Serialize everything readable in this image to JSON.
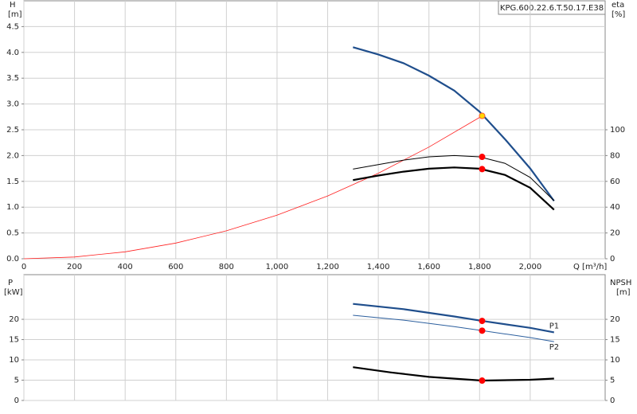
{
  "chart_data": [
    {
      "type": "line",
      "y_label": "H",
      "y_unit": "[m]",
      "y2_label": "eta",
      "y2_unit": "[%]",
      "x_label": "Q [m³/h]",
      "legend": "KPG.600.22.6.T.50.17.E38",
      "xlim": [
        0,
        2296
      ],
      "xticks": [
        0,
        200,
        400,
        600,
        800,
        {
          "value": 1000,
          "label": "1,000"
        },
        {
          "value": 1200,
          "label": "1,200"
        },
        {
          "value": 1400,
          "label": "1,400"
        },
        {
          "value": 1600,
          "label": "1,600"
        },
        {
          "value": 1800,
          "label": "1,800"
        },
        {
          "value": 2000,
          "label": "2,000"
        }
      ],
      "ylim": [
        0,
        5
      ],
      "yticks": [
        {
          "value": 0,
          "label": "0.0"
        },
        0.5,
        {
          "value": 1,
          "label": "1.0"
        },
        1.5,
        {
          "value": 2,
          "label": "2.0"
        },
        2.5,
        {
          "value": 3,
          "label": "3.0"
        },
        3.5,
        {
          "value": 4,
          "label": "4.0"
        },
        4.5
      ],
      "y2lim": [
        0,
        200
      ],
      "y2ticks": [
        0,
        20,
        40,
        60,
        80,
        100
      ],
      "grid": true,
      "series": [
        {
          "color": "#ff2020",
          "width": 0.8,
          "x": [
            0,
            200,
            400,
            600,
            800,
            1000,
            1200,
            1400,
            1600,
            1800,
            1820
          ],
          "values": [
            0,
            0.034,
            0.135,
            0.304,
            0.541,
            0.846,
            1.218,
            1.657,
            2.165,
            2.739,
            2.8
          ]
        },
        {
          "color": "#1f4e8c",
          "width": 2.2,
          "x": [
            1300,
            1400,
            1500,
            1600,
            1700,
            1800,
            1900,
            2000,
            2094
          ],
          "values": [
            4.1,
            3.96,
            3.79,
            3.55,
            3.26,
            2.85,
            2.32,
            1.75,
            1.12
          ]
        },
        {
          "color": "#000000",
          "width": 1,
          "axis": "y2",
          "x": [
            1300,
            1400,
            1500,
            1600,
            1700,
            1800,
            1900,
            2000,
            2094
          ],
          "values": [
            69.5,
            73,
            76.5,
            79,
            80,
            79,
            74,
            63,
            45
          ]
        },
        {
          "color": "#000000",
          "width": 2.2,
          "axis": "y2",
          "x": [
            1300,
            1400,
            1500,
            1600,
            1700,
            1800,
            1900,
            2000,
            2094
          ],
          "values": [
            61,
            64.5,
            67.5,
            69.8,
            70.8,
            69.8,
            65,
            55,
            38
          ]
        }
      ],
      "markers": [
        {
          "color": "#ffd700",
          "x": 1810,
          "y": 2.77
        },
        {
          "color": "#ff0000",
          "axis": "y2",
          "x": 1810,
          "y": 79
        },
        {
          "color": "#ff0000",
          "axis": "y2",
          "x": 1810,
          "y": 69.5
        }
      ]
    },
    {
      "type": "line",
      "y_label": "P",
      "y_unit": "[kW]",
      "y2_label": "NPSH",
      "y2_unit": "[m]",
      "xlim": [
        0,
        2296
      ],
      "ylim": [
        0,
        31
      ],
      "yticks": [
        0,
        5,
        10,
        15,
        20
      ],
      "y2lim": [
        0,
        31
      ],
      "y2ticks": [
        0,
        5,
        10,
        15,
        20
      ],
      "grid": true,
      "series": [
        {
          "name": "P1",
          "color": "#1f4e8c",
          "width": 2.2,
          "x": [
            1300,
            1500,
            1700,
            1810,
            2000,
            2094
          ],
          "values": [
            23.8,
            22.5,
            20.7,
            19.6,
            17.9,
            16.8
          ]
        },
        {
          "name": "P2",
          "color": "#2c5f9e",
          "width": 1,
          "x": [
            1300,
            1500,
            1700,
            1810,
            2000,
            2094
          ],
          "values": [
            21,
            19.8,
            18.2,
            17.2,
            15.5,
            14.5
          ]
        },
        {
          "color": "#000000",
          "width": 2.2,
          "axis": "y2",
          "x": [
            1300,
            1450,
            1600,
            1810,
            2000,
            2094
          ],
          "values": [
            8.2,
            6.9,
            5.8,
            4.9,
            5.1,
            5.4
          ]
        }
      ],
      "markers": [
        {
          "color": "#ff0000",
          "x": 1810,
          "y": 19.6
        },
        {
          "color": "#ff0000",
          "x": 1810,
          "y": 17.2
        },
        {
          "color": "#ff0000",
          "axis": "y2",
          "x": 1810,
          "y": 4.9
        }
      ]
    }
  ]
}
